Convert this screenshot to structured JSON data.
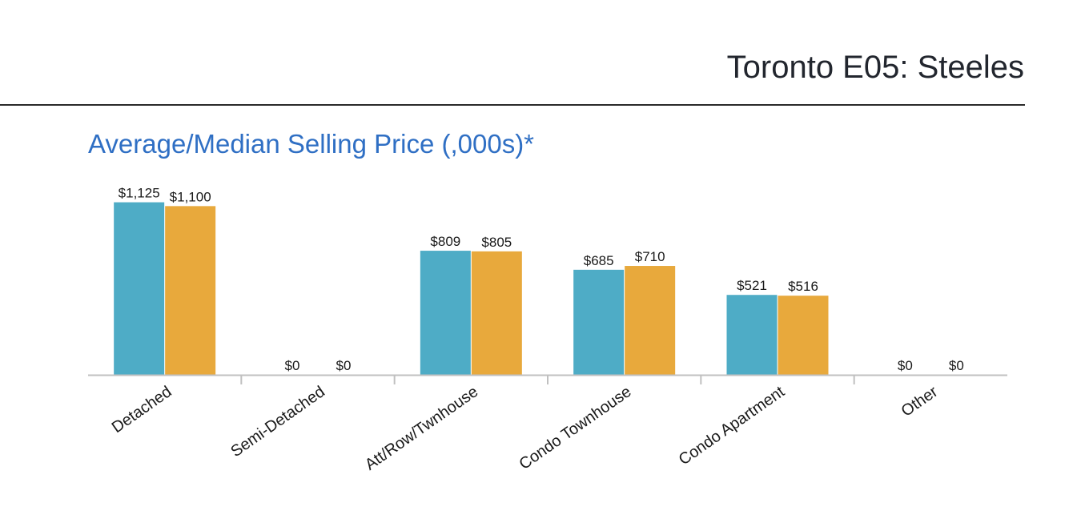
{
  "header": {
    "title": "Toronto E05: Steeles"
  },
  "colors": {
    "average": "#4eacc6",
    "median": "#e8a93c",
    "axis": "#c0c0c0",
    "title_accent": "#2f6fc4"
  },
  "chart_data": {
    "type": "bar",
    "title": "Average/Median Selling Price (,000s)*",
    "xlabel": "",
    "ylabel": "",
    "ylim": [
      0,
      1200
    ],
    "grid": false,
    "categories": [
      "Detached",
      "Semi-Detached",
      "Att/Row/Twnhouse",
      "Condo Townhouse",
      "Condo Apartment",
      "Other"
    ],
    "series": [
      {
        "name": "Average",
        "values": [
          1125,
          0,
          809,
          685,
          521,
          0
        ],
        "labels": [
          "$1,125",
          "$0",
          "$809",
          "$685",
          "$521",
          "$0"
        ]
      },
      {
        "name": "Median",
        "values": [
          1100,
          0,
          805,
          710,
          516,
          0
        ],
        "labels": [
          "$1,100",
          "$0",
          "$805",
          "$710",
          "$516",
          "$0"
        ]
      }
    ]
  }
}
